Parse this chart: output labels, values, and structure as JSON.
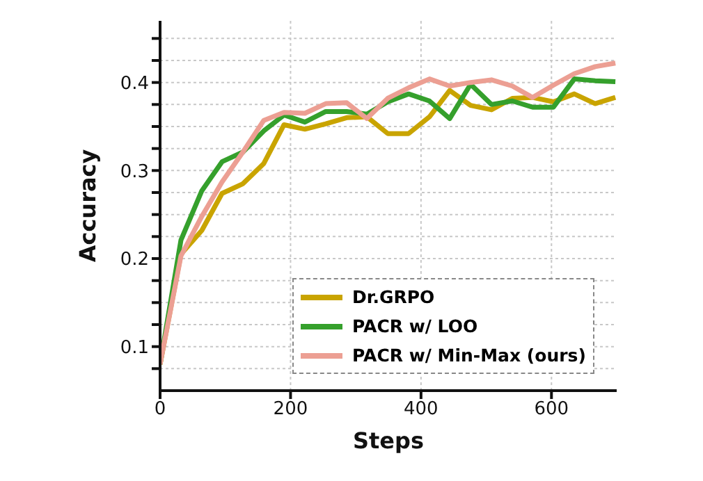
{
  "chart_data": {
    "type": "line",
    "xlabel": "Steps",
    "ylabel": "Accuracy",
    "x": [
      0,
      32,
      64,
      95,
      127,
      159,
      190,
      222,
      254,
      286,
      317,
      349,
      381,
      413,
      444,
      476,
      508,
      540,
      571,
      603,
      635,
      667,
      698
    ],
    "series": [
      {
        "name": "Dr.GRPO",
        "color": "#c9a400",
        "values": [
          0.08,
          0.205,
          0.232,
          0.274,
          0.285,
          0.308,
          0.352,
          0.347,
          0.353,
          0.36,
          0.361,
          0.342,
          0.342,
          0.361,
          0.391,
          0.374,
          0.369,
          0.382,
          0.383,
          0.378,
          0.387,
          0.376,
          0.383
        ]
      },
      {
        "name": "PACR w/ LOO",
        "color": "#35a02c",
        "values": [
          0.08,
          0.221,
          0.277,
          0.31,
          0.321,
          0.345,
          0.363,
          0.355,
          0.367,
          0.367,
          0.364,
          0.378,
          0.387,
          0.379,
          0.359,
          0.398,
          0.375,
          0.379,
          0.372,
          0.372,
          0.404,
          0.402,
          0.401
        ]
      },
      {
        "name": "PACR w/ Min-Max (ours)",
        "color": "#ec9f93",
        "values": [
          0.08,
          0.203,
          0.248,
          0.287,
          0.321,
          0.357,
          0.366,
          0.365,
          0.376,
          0.377,
          0.359,
          0.382,
          0.394,
          0.404,
          0.396,
          0.4,
          0.403,
          0.396,
          0.383,
          0.397,
          0.41,
          0.418,
          0.422
        ]
      }
    ],
    "xlim": [
      0,
      700
    ],
    "xticks": [
      0,
      200,
      400,
      600
    ],
    "ylim": [
      0.05,
      0.47
    ],
    "yticks": [
      {
        "value": 0.075,
        "label": null
      },
      0.1,
      {
        "value": 0.125,
        "label": null
      },
      {
        "value": 0.15,
        "label": null
      },
      {
        "value": 0.175,
        "label": null
      },
      0.2,
      {
        "value": 0.225,
        "label": null
      },
      {
        "value": 0.25,
        "label": null
      },
      {
        "value": 0.275,
        "label": null
      },
      0.3,
      {
        "value": 0.325,
        "label": null
      },
      {
        "value": 0.35,
        "label": null
      },
      {
        "value": 0.375,
        "label": null
      },
      0.4,
      {
        "value": 0.425,
        "label": null
      },
      {
        "value": 0.45,
        "label": null
      }
    ],
    "grid": true,
    "legend": "bottom right",
    "marker": "none",
    "line_style": "solid"
  }
}
